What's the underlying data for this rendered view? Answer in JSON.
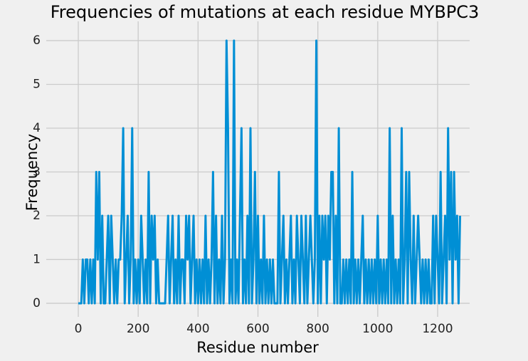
{
  "chart_data": {
    "type": "line",
    "title": "Frequencies of mutations at each residue MYBPC3",
    "x_label": "Residue number",
    "y_label": "Frequency",
    "xlim": [
      -107,
      1307
    ],
    "ylim": [
      -0.31,
      6.44
    ],
    "xticks": [
      0,
      200,
      400,
      600,
      800,
      1000,
      1200
    ],
    "yticks": [
      0,
      1,
      2,
      3,
      4,
      5,
      6
    ],
    "grid": true,
    "series": [
      {
        "color": "#008fd5",
        "x": [
          0,
          5,
          10,
          15,
          20,
          25,
          30,
          35,
          40,
          45,
          50,
          55,
          60,
          65,
          70,
          75,
          80,
          85,
          90,
          95,
          100,
          105,
          110,
          115,
          120,
          125,
          130,
          135,
          140,
          145,
          150,
          155,
          160,
          165,
          170,
          175,
          180,
          185,
          190,
          195,
          200,
          205,
          210,
          215,
          220,
          225,
          230,
          235,
          240,
          245,
          250,
          255,
          260,
          265,
          270,
          275,
          280,
          285,
          290,
          295,
          300,
          305,
          310,
          315,
          320,
          325,
          330,
          335,
          340,
          345,
          350,
          355,
          360,
          365,
          370,
          375,
          380,
          385,
          390,
          395,
          400,
          405,
          410,
          415,
          420,
          425,
          430,
          435,
          440,
          445,
          450,
          455,
          460,
          465,
          470,
          475,
          480,
          485,
          490,
          495,
          500,
          505,
          510,
          515,
          520,
          525,
          530,
          535,
          540,
          545,
          550,
          555,
          560,
          565,
          570,
          575,
          580,
          585,
          590,
          595,
          600,
          605,
          610,
          615,
          620,
          625,
          630,
          635,
          640,
          645,
          650,
          655,
          660,
          665,
          670,
          675,
          680,
          685,
          690,
          695,
          700,
          705,
          710,
          715,
          720,
          725,
          730,
          735,
          740,
          745,
          750,
          755,
          760,
          765,
          770,
          775,
          780,
          785,
          790,
          795,
          800,
          805,
          810,
          815,
          820,
          825,
          830,
          835,
          840,
          845,
          850,
          855,
          860,
          865,
          870,
          875,
          880,
          885,
          890,
          895,
          900,
          905,
          910,
          915,
          920,
          925,
          930,
          935,
          940,
          945,
          950,
          955,
          960,
          965,
          970,
          975,
          980,
          985,
          990,
          995,
          1000,
          1005,
          1010,
          1015,
          1020,
          1025,
          1030,
          1035,
          1040,
          1045,
          1050,
          1055,
          1060,
          1065,
          1070,
          1075,
          1080,
          1085,
          1090,
          1095,
          1100,
          1105,
          1110,
          1115,
          1120,
          1125,
          1130,
          1135,
          1140,
          1145,
          1150,
          1155,
          1160,
          1165,
          1170,
          1175,
          1180,
          1185,
          1190,
          1195,
          1200,
          1205,
          1210,
          1215,
          1220,
          1225,
          1230,
          1235,
          1240,
          1245,
          1250,
          1255,
          1260,
          1265,
          1270,
          1275
        ],
        "values": [
          0,
          0,
          0,
          1,
          0,
          1,
          1,
          0,
          1,
          0,
          1,
          0,
          3,
          1,
          3,
          0,
          2,
          0,
          0,
          1,
          2,
          0,
          2,
          1,
          0,
          1,
          0,
          1,
          1,
          2,
          4,
          0,
          1,
          2,
          0,
          1,
          4,
          0,
          1,
          0,
          1,
          0,
          2,
          1,
          0,
          1,
          0,
          3,
          0,
          2,
          1,
          2,
          0,
          1,
          0,
          0,
          0,
          0,
          0,
          1,
          2,
          0,
          1,
          2,
          0,
          1,
          0,
          2,
          0,
          1,
          1,
          0,
          2,
          1,
          2,
          0,
          1,
          2,
          0,
          1,
          0,
          1,
          0,
          1,
          0,
          2,
          0,
          1,
          0,
          1,
          3,
          0,
          2,
          0,
          1,
          0,
          2,
          0,
          1,
          6,
          4,
          0,
          1,
          0,
          6,
          0,
          1,
          0,
          2,
          4,
          0,
          1,
          0,
          2,
          0,
          4,
          0,
          1,
          3,
          0,
          2,
          0,
          1,
          0,
          2,
          0,
          1,
          0,
          1,
          0,
          1,
          0,
          0,
          0,
          3,
          0,
          1,
          2,
          0,
          1,
          0,
          1,
          2,
          0,
          1,
          0,
          2,
          1,
          0,
          2,
          1,
          0,
          2,
          0,
          1,
          2,
          1,
          0,
          1,
          6,
          0,
          2,
          0,
          2,
          1,
          2,
          0,
          2,
          1,
          3,
          3,
          0,
          2,
          0,
          4,
          0,
          0,
          1,
          0,
          1,
          0,
          1,
          0,
          3,
          0,
          1,
          0,
          1,
          0,
          1,
          2,
          0,
          1,
          0,
          1,
          0,
          1,
          0,
          1,
          0,
          2,
          0,
          1,
          0,
          1,
          0,
          1,
          0,
          4,
          0,
          2,
          0,
          1,
          0,
          1,
          0,
          4,
          0,
          1,
          3,
          0,
          3,
          1,
          0,
          2,
          0,
          1,
          2,
          1,
          0,
          1,
          0,
          1,
          0,
          1,
          0,
          0,
          2,
          0,
          2,
          1,
          0,
          3,
          0,
          1,
          2,
          0,
          4,
          1,
          3,
          0,
          3,
          1,
          2,
          0,
          2
        ]
      }
    ]
  }
}
